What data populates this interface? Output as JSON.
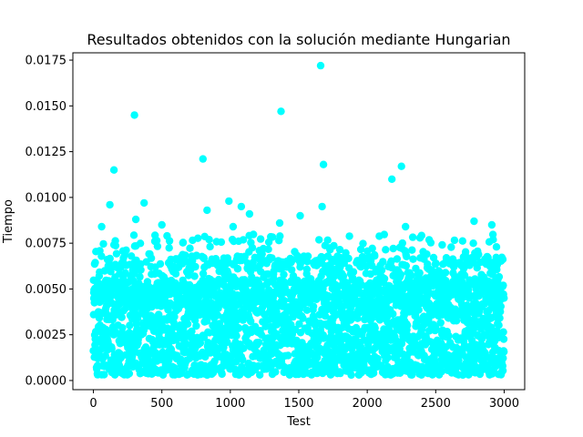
{
  "chart_data": {
    "type": "scatter",
    "title": "Resultados obtenidos con la solución mediante Hungarian",
    "xlabel": "Test",
    "ylabel": "Tiempo",
    "xlim": [
      -150,
      3150
    ],
    "ylim": [
      -0.0005,
      0.0179
    ],
    "xticks": [
      0,
      500,
      1000,
      1500,
      2000,
      2500,
      3000
    ],
    "xtick_labels": [
      "0",
      "500",
      "1000",
      "1500",
      "2000",
      "2500",
      "3000"
    ],
    "yticks": [
      0.0,
      0.0025,
      0.005,
      0.0075,
      0.01,
      0.0125,
      0.015,
      0.0175
    ],
    "ytick_labels": [
      "0.0000",
      "0.0025",
      "0.0050",
      "0.0075",
      "0.0100",
      "0.0125",
      "0.0150",
      "0.0175"
    ],
    "grid": false,
    "marker_color": "#00ffff",
    "n_points": 3000,
    "notable_points": [
      {
        "x": 1660,
        "y": 0.0172
      },
      {
        "x": 300,
        "y": 0.0145
      },
      {
        "x": 1370,
        "y": 0.0147
      },
      {
        "x": 800,
        "y": 0.0121
      },
      {
        "x": 1680,
        "y": 0.0118
      },
      {
        "x": 2250,
        "y": 0.0117
      },
      {
        "x": 150,
        "y": 0.0115
      },
      {
        "x": 2180,
        "y": 0.011
      },
      {
        "x": 990,
        "y": 0.0098
      },
      {
        "x": 370,
        "y": 0.0097
      },
      {
        "x": 120,
        "y": 0.0096
      },
      {
        "x": 1670,
        "y": 0.0095
      },
      {
        "x": 1080,
        "y": 0.0095
      },
      {
        "x": 830,
        "y": 0.0093
      },
      {
        "x": 1140,
        "y": 0.0091
      },
      {
        "x": 1510,
        "y": 0.009
      },
      {
        "x": 2780,
        "y": 0.0087
      },
      {
        "x": 1360,
        "y": 0.0086
      },
      {
        "x": 310,
        "y": 0.0088
      },
      {
        "x": 2910,
        "y": 0.0085
      },
      {
        "x": 500,
        "y": 0.0085
      },
      {
        "x": 2280,
        "y": 0.0084
      },
      {
        "x": 60,
        "y": 0.0084
      },
      {
        "x": 1020,
        "y": 0.0084
      }
    ],
    "bulk_range": {
      "y_min": 0.0003,
      "y_max": 0.008
    }
  }
}
